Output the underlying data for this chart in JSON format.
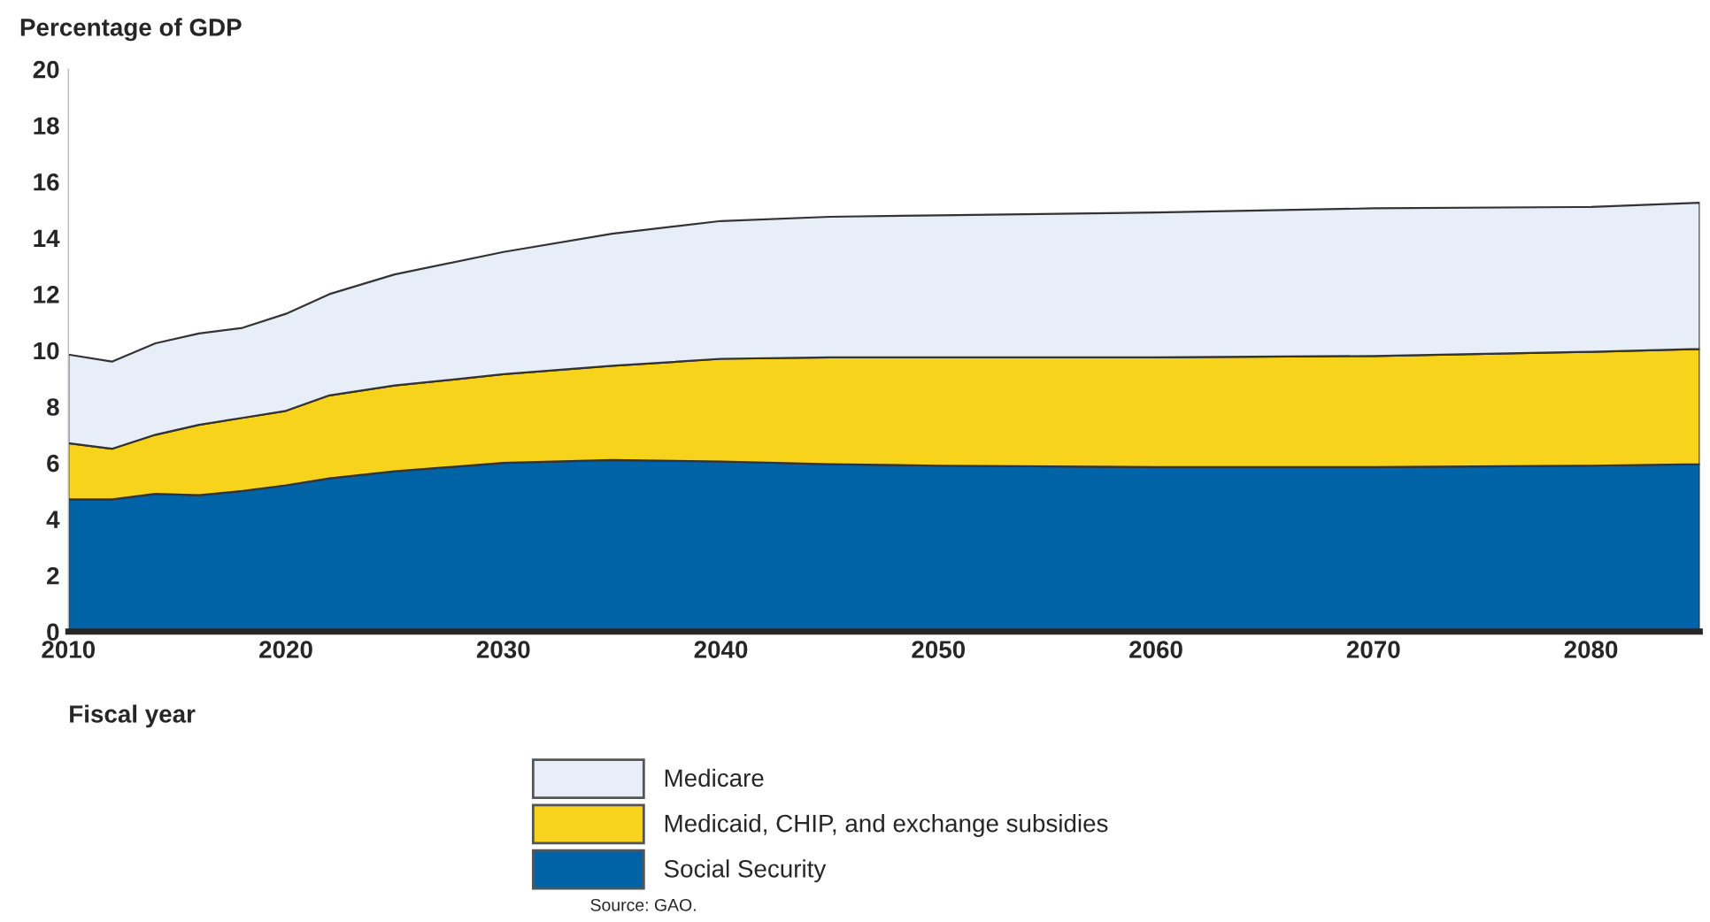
{
  "chart_data": {
    "type": "area",
    "stacked": true,
    "ylabel": "Percentage of GDP",
    "xlabel": "Fiscal year",
    "x": [
      2010,
      2012,
      2014,
      2016,
      2018,
      2020,
      2022,
      2025,
      2030,
      2035,
      2040,
      2045,
      2050,
      2060,
      2070,
      2080,
      2085
    ],
    "series": [
      {
        "name": "Social Security",
        "color": "#0063a6",
        "values": [
          4.7,
          4.7,
          4.9,
          4.85,
          5.0,
          5.2,
          5.45,
          5.7,
          6.0,
          6.1,
          6.05,
          5.95,
          5.9,
          5.85,
          5.85,
          5.9,
          5.95
        ]
      },
      {
        "name": "Medicaid, CHIP, and exchange subsidies",
        "color": "#f8d31c",
        "values": [
          2.0,
          1.8,
          2.1,
          2.5,
          2.6,
          2.65,
          2.95,
          3.05,
          3.15,
          3.35,
          3.65,
          3.8,
          3.85,
          3.9,
          3.95,
          4.05,
          4.1
        ]
      },
      {
        "name": "Medicare",
        "color": "#e8eef7",
        "values": [
          3.15,
          3.1,
          3.25,
          3.25,
          3.2,
          3.45,
          3.6,
          3.95,
          4.35,
          4.7,
          4.9,
          5.0,
          5.05,
          5.15,
          5.25,
          5.15,
          5.2
        ]
      }
    ],
    "xlim": [
      2010,
      2085
    ],
    "xticks": [
      2010,
      2020,
      2030,
      2040,
      2050,
      2060,
      2070,
      2080
    ],
    "ylim": [
      0,
      20
    ],
    "yticks": [
      0,
      2,
      4,
      6,
      8,
      10,
      12,
      14,
      16,
      18,
      20
    ],
    "grid": false,
    "legend": "bottom",
    "annotations": [
      "Source: GAO."
    ]
  }
}
